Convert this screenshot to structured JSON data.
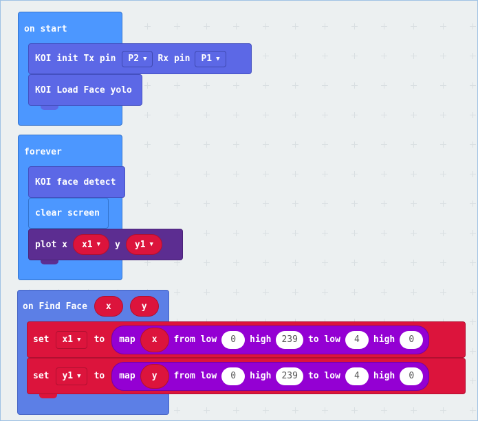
{
  "on_start": {
    "hat_label": "on start",
    "koi_init": {
      "prefix": "KOI init Tx pin",
      "tx_value": "P2",
      "rx_label": "Rx pin",
      "rx_value": "P1"
    },
    "koi_load": {
      "label": "KOI Load Face yolo"
    }
  },
  "forever": {
    "hat_label": "forever",
    "koi_detect": {
      "label": "KOI face detect"
    },
    "clear_screen": {
      "label": "clear screen"
    },
    "plot": {
      "label": "plot x",
      "x_var": "x1",
      "y_label": "y",
      "y_var": "y1"
    }
  },
  "on_find_face": {
    "hat_label": "on Find Face",
    "param_x": "x",
    "param_y": "y",
    "set_rows": [
      {
        "set_label": "set",
        "var": "x1",
        "to_label": "to",
        "map_label": "map",
        "input": "x",
        "from_low_label": "from low",
        "from_low": "0",
        "high_label": "high",
        "from_high": "239",
        "to_low_label": "to low",
        "to_low": "4",
        "to_high_label": "high",
        "to_high": "0"
      },
      {
        "set_label": "set",
        "var": "y1",
        "to_label": "to",
        "map_label": "map",
        "input": "y",
        "from_low_label": "from low",
        "from_low": "0",
        "high_label": "high",
        "from_high": "239",
        "to_low_label": "to low",
        "to_low": "4",
        "to_high_label": "high",
        "to_high": "0"
      }
    ]
  },
  "icons": {
    "dropdown": "▼"
  },
  "colors": {
    "blue": "#4c97ff",
    "koi": "#5c68e6",
    "plot": "#5c2d91",
    "event": "#5c7fe6",
    "variable": "#dc143c",
    "math": "#9400d3",
    "workspace": "#ecf0f1"
  }
}
